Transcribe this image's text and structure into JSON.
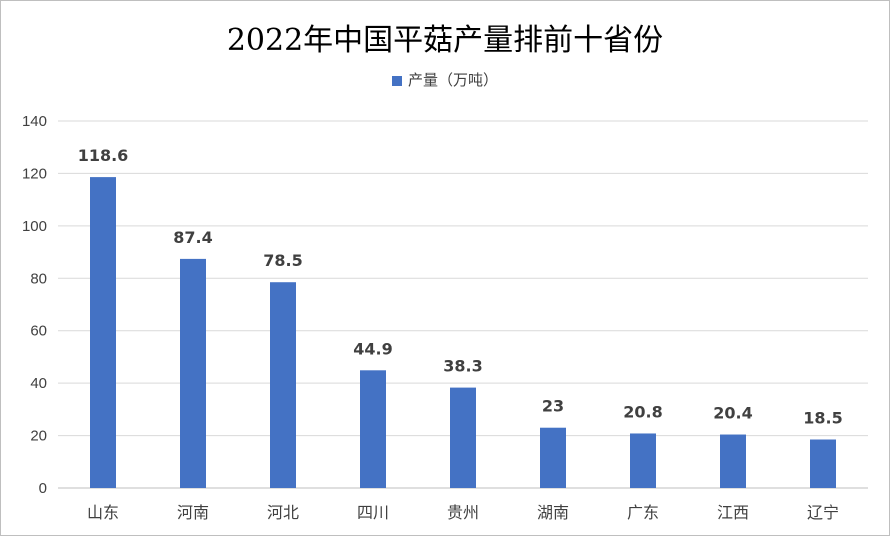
{
  "chart_data": {
    "type": "bar",
    "title": "2022年中国平菇产量排前十省份",
    "xlabel": "",
    "ylabel": "",
    "categories": [
      "山东",
      "河南",
      "河北",
      "四川",
      "贵州",
      "湖南",
      "广东",
      "江西",
      "辽宁"
    ],
    "series": [
      {
        "name": "产量（万吨）",
        "values": [
          118.6,
          87.4,
          78.5,
          44.9,
          38.3,
          23,
          20.8,
          20.4,
          18.5
        ]
      }
    ],
    "ylim": [
      0,
      140
    ],
    "yticks": [
      0,
      20,
      40,
      60,
      80,
      100,
      120,
      140
    ],
    "grid": true,
    "legend": "top",
    "data_labels": true,
    "colors": {
      "bar": "#4472C4",
      "grid": "#d9d9d9"
    }
  }
}
